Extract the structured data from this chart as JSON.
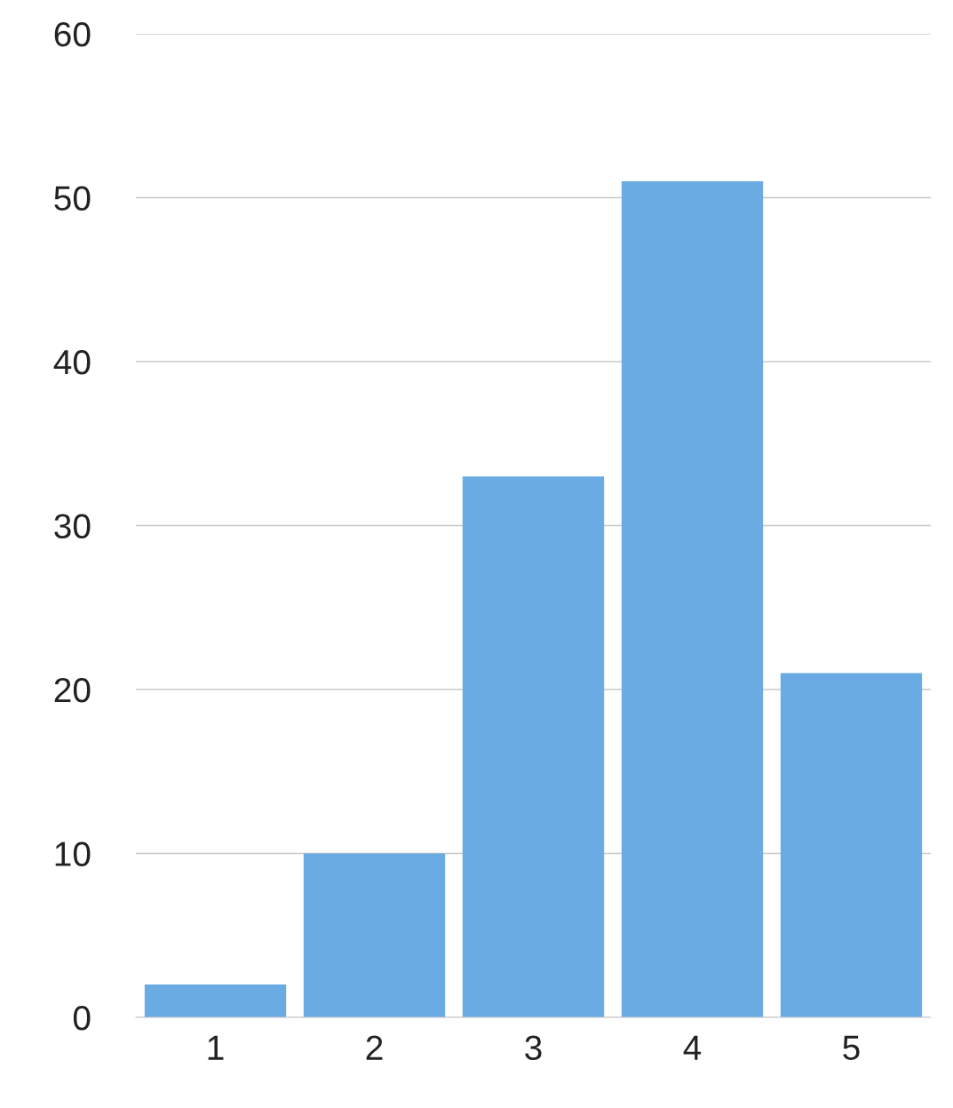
{
  "chart_data": {
    "type": "bar",
    "categories": [
      "1",
      "2",
      "3",
      "4",
      "5"
    ],
    "values": [
      2,
      10,
      33,
      51,
      21
    ],
    "color": "#6aabe4",
    "ylim": [
      0,
      60
    ],
    "yticks": [
      0,
      10,
      20,
      30,
      40,
      50,
      60
    ],
    "grid": "y",
    "legend": false
  }
}
